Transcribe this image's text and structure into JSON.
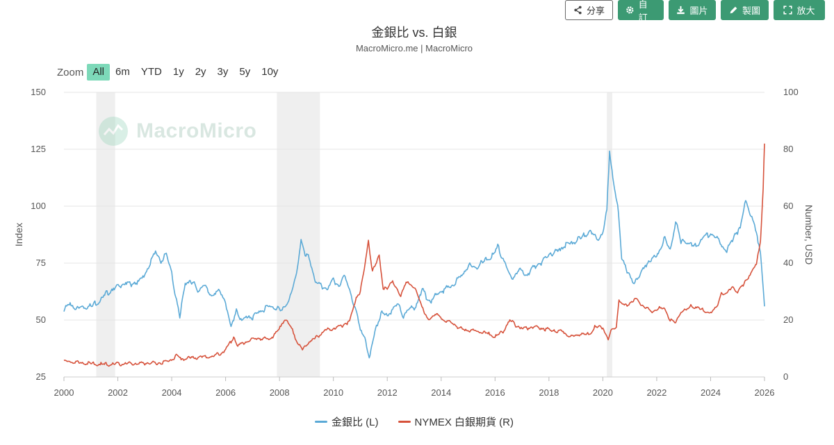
{
  "toolbar": {
    "share_label": "分享",
    "custom_label": "自訂",
    "image_label": "圖片",
    "make_chart_label": "製圖",
    "enlarge_label": "放大"
  },
  "header": {
    "title": "金銀比 vs. 白銀",
    "subtitle": "MacroMicro.me | MacroMicro"
  },
  "zoom": {
    "label": "Zoom",
    "options": [
      "All",
      "6m",
      "YTD",
      "1y",
      "2y",
      "3y",
      "5y",
      "10y"
    ],
    "selected": "All"
  },
  "watermark": {
    "text": "MacroMicro"
  },
  "colors": {
    "gold_silver_ratio": "#5aa9d6",
    "silver_futures": "#d6513a",
    "recession_band": "#efefef",
    "grid": "#e6e6e6",
    "accent": "#3c9a73"
  },
  "chart_data": {
    "type": "line",
    "title": "金銀比 vs. 白銀",
    "subtitle": "MacroMicro.me | MacroMicro",
    "xlabel": "",
    "x_ticks": [
      "2000",
      "2002",
      "2004",
      "2006",
      "2008",
      "2010",
      "2012",
      "2014",
      "2016",
      "2018",
      "2020",
      "2022",
      "2024",
      "2026"
    ],
    "x_range": [
      2000,
      2026
    ],
    "left_axis": {
      "label": "Index",
      "range": [
        25,
        150
      ],
      "ticks": [
        25,
        50,
        75,
        100,
        125,
        150
      ]
    },
    "right_axis": {
      "label": "Number, USD",
      "range": [
        0,
        100
      ],
      "ticks": [
        0,
        20,
        40,
        60,
        80,
        100
      ]
    },
    "recession_bands": [
      [
        2001.2,
        2001.9
      ],
      [
        2007.9,
        2009.5
      ],
      [
        2020.15,
        2020.35
      ]
    ],
    "series": [
      {
        "name": "金銀比 (L)",
        "axis": "left",
        "points": [
          [
            2000.0,
            54
          ],
          [
            2000.2,
            57
          ],
          [
            2000.5,
            55
          ],
          [
            2000.8,
            56
          ],
          [
            2001.0,
            56
          ],
          [
            2001.3,
            58
          ],
          [
            2001.6,
            62
          ],
          [
            2001.9,
            64
          ],
          [
            2002.2,
            66
          ],
          [
            2002.5,
            66
          ],
          [
            2002.8,
            67
          ],
          [
            2003.0,
            70
          ],
          [
            2003.2,
            75
          ],
          [
            2003.4,
            80
          ],
          [
            2003.6,
            76
          ],
          [
            2003.8,
            79
          ],
          [
            2004.0,
            71
          ],
          [
            2004.15,
            60
          ],
          [
            2004.3,
            51
          ],
          [
            2004.5,
            67
          ],
          [
            2004.8,
            66
          ],
          [
            2005.0,
            63
          ],
          [
            2005.2,
            65
          ],
          [
            2005.5,
            61
          ],
          [
            2005.8,
            63
          ],
          [
            2006.0,
            58
          ],
          [
            2006.2,
            46
          ],
          [
            2006.4,
            55
          ],
          [
            2006.6,
            49
          ],
          [
            2006.8,
            52
          ],
          [
            2007.0,
            51
          ],
          [
            2007.3,
            54
          ],
          [
            2007.6,
            56
          ],
          [
            2007.9,
            55
          ],
          [
            2008.1,
            54
          ],
          [
            2008.4,
            60
          ],
          [
            2008.6,
            68
          ],
          [
            2008.8,
            86
          ],
          [
            2008.95,
            78
          ],
          [
            2009.1,
            78
          ],
          [
            2009.3,
            68
          ],
          [
            2009.5,
            65
          ],
          [
            2009.8,
            64
          ],
          [
            2010.0,
            68
          ],
          [
            2010.2,
            65
          ],
          [
            2010.4,
            69
          ],
          [
            2010.6,
            64
          ],
          [
            2010.8,
            55
          ],
          [
            2011.0,
            46
          ],
          [
            2011.2,
            42
          ],
          [
            2011.33,
            32
          ],
          [
            2011.45,
            40
          ],
          [
            2011.6,
            48
          ],
          [
            2011.8,
            53
          ],
          [
            2012.0,
            52
          ],
          [
            2012.2,
            55
          ],
          [
            2012.4,
            57
          ],
          [
            2012.6,
            52
          ],
          [
            2012.8,
            55
          ],
          [
            2013.0,
            55
          ],
          [
            2013.3,
            63
          ],
          [
            2013.6,
            58
          ],
          [
            2013.9,
            62
          ],
          [
            2014.2,
            64
          ],
          [
            2014.5,
            66
          ],
          [
            2014.8,
            70
          ],
          [
            2015.0,
            74
          ],
          [
            2015.3,
            73
          ],
          [
            2015.6,
            76
          ],
          [
            2015.9,
            78
          ],
          [
            2016.1,
            82
          ],
          [
            2016.3,
            77
          ],
          [
            2016.6,
            68
          ],
          [
            2016.9,
            72
          ],
          [
            2017.2,
            70
          ],
          [
            2017.5,
            74
          ],
          [
            2017.8,
            76
          ],
          [
            2018.0,
            79
          ],
          [
            2018.3,
            80
          ],
          [
            2018.6,
            83
          ],
          [
            2018.9,
            84
          ],
          [
            2019.2,
            86
          ],
          [
            2019.5,
            89
          ],
          [
            2019.8,
            86
          ],
          [
            2020.0,
            88
          ],
          [
            2020.15,
            98
          ],
          [
            2020.25,
            125
          ],
          [
            2020.4,
            110
          ],
          [
            2020.55,
            100
          ],
          [
            2020.7,
            78
          ],
          [
            2020.9,
            72
          ],
          [
            2021.1,
            66
          ],
          [
            2021.4,
            70
          ],
          [
            2021.7,
            76
          ],
          [
            2022.0,
            78
          ],
          [
            2022.3,
            86
          ],
          [
            2022.5,
            80
          ],
          [
            2022.7,
            94
          ],
          [
            2022.9,
            84
          ],
          [
            2023.1,
            85
          ],
          [
            2023.4,
            82
          ],
          [
            2023.7,
            86
          ],
          [
            2024.0,
            88
          ],
          [
            2024.3,
            85
          ],
          [
            2024.6,
            80
          ],
          [
            2024.9,
            88
          ],
          [
            2025.1,
            90
          ],
          [
            2025.3,
            103
          ],
          [
            2025.5,
            96
          ],
          [
            2025.7,
            88
          ],
          [
            2025.85,
            80
          ],
          [
            2025.95,
            65
          ],
          [
            2026.0,
            56
          ]
        ]
      },
      {
        "name": "NYMEX 白銀期貨 (R)",
        "axis": "right",
        "points": [
          [
            2000.0,
            5.4
          ],
          [
            2000.5,
            5.1
          ],
          [
            2001.0,
            4.7
          ],
          [
            2001.5,
            4.4
          ],
          [
            2002.0,
            4.6
          ],
          [
            2002.5,
            4.7
          ],
          [
            2003.0,
            4.8
          ],
          [
            2003.5,
            4.9
          ],
          [
            2003.9,
            5.6
          ],
          [
            2004.2,
            7.5
          ],
          [
            2004.35,
            6.2
          ],
          [
            2004.7,
            6.8
          ],
          [
            2005.0,
            6.9
          ],
          [
            2005.5,
            7.2
          ],
          [
            2005.9,
            8.6
          ],
          [
            2006.1,
            11.0
          ],
          [
            2006.3,
            14.0
          ],
          [
            2006.45,
            11.0
          ],
          [
            2006.8,
            12.5
          ],
          [
            2007.0,
            13.4
          ],
          [
            2007.3,
            13.5
          ],
          [
            2007.6,
            13.2
          ],
          [
            2007.9,
            15.5
          ],
          [
            2008.2,
            20.5
          ],
          [
            2008.45,
            17.0
          ],
          [
            2008.65,
            12.5
          ],
          [
            2008.85,
            9.5
          ],
          [
            2009.1,
            12.5
          ],
          [
            2009.4,
            14.0
          ],
          [
            2009.7,
            16.5
          ],
          [
            2010.0,
            17.0
          ],
          [
            2010.3,
            18.0
          ],
          [
            2010.6,
            19.5
          ],
          [
            2010.85,
            28.0
          ],
          [
            2011.0,
            30.0
          ],
          [
            2011.15,
            38.0
          ],
          [
            2011.3,
            48.0
          ],
          [
            2011.45,
            37.0
          ],
          [
            2011.6,
            40.0
          ],
          [
            2011.7,
            43.0
          ],
          [
            2011.85,
            31.0
          ],
          [
            2012.0,
            31.0
          ],
          [
            2012.2,
            34.0
          ],
          [
            2012.5,
            28.0
          ],
          [
            2012.7,
            34.0
          ],
          [
            2012.9,
            32.0
          ],
          [
            2013.1,
            30.0
          ],
          [
            2013.35,
            23.0
          ],
          [
            2013.5,
            20.0
          ],
          [
            2013.8,
            22.0
          ],
          [
            2014.1,
            20.0
          ],
          [
            2014.4,
            19.0
          ],
          [
            2014.7,
            17.0
          ],
          [
            2015.0,
            16.5
          ],
          [
            2015.4,
            16.0
          ],
          [
            2015.8,
            15.0
          ],
          [
            2016.0,
            14.0
          ],
          [
            2016.3,
            16.0
          ],
          [
            2016.55,
            20.0
          ],
          [
            2016.8,
            18.0
          ],
          [
            2017.0,
            17.0
          ],
          [
            2017.4,
            17.5
          ],
          [
            2017.8,
            17.0
          ],
          [
            2018.1,
            16.5
          ],
          [
            2018.5,
            16.0
          ],
          [
            2018.8,
            14.0
          ],
          [
            2019.1,
            15.0
          ],
          [
            2019.5,
            15.0
          ],
          [
            2019.7,
            17.5
          ],
          [
            2020.0,
            17.5
          ],
          [
            2020.2,
            13.0
          ],
          [
            2020.3,
            16.0
          ],
          [
            2020.5,
            18.0
          ],
          [
            2020.6,
            27.0
          ],
          [
            2020.8,
            25.0
          ],
          [
            2021.0,
            26.0
          ],
          [
            2021.2,
            27.5
          ],
          [
            2021.5,
            25.0
          ],
          [
            2021.8,
            23.0
          ],
          [
            2022.1,
            24.0
          ],
          [
            2022.3,
            24.0
          ],
          [
            2022.5,
            20.0
          ],
          [
            2022.7,
            19.0
          ],
          [
            2022.9,
            23.0
          ],
          [
            2023.1,
            23.5
          ],
          [
            2023.3,
            25.0
          ],
          [
            2023.6,
            24.0
          ],
          [
            2023.8,
            23.0
          ],
          [
            2024.0,
            22.5
          ],
          [
            2024.2,
            24.0
          ],
          [
            2024.4,
            29.5
          ],
          [
            2024.6,
            29.0
          ],
          [
            2024.8,
            32.0
          ],
          [
            2025.0,
            29.5
          ],
          [
            2025.3,
            34.0
          ],
          [
            2025.5,
            36.0
          ],
          [
            2025.7,
            40.0
          ],
          [
            2025.85,
            48.0
          ],
          [
            2025.95,
            66.0
          ],
          [
            2026.0,
            82.0
          ]
        ]
      }
    ],
    "legend": [
      "金銀比 (L)",
      "NYMEX 白銀期貨 (R)"
    ]
  }
}
